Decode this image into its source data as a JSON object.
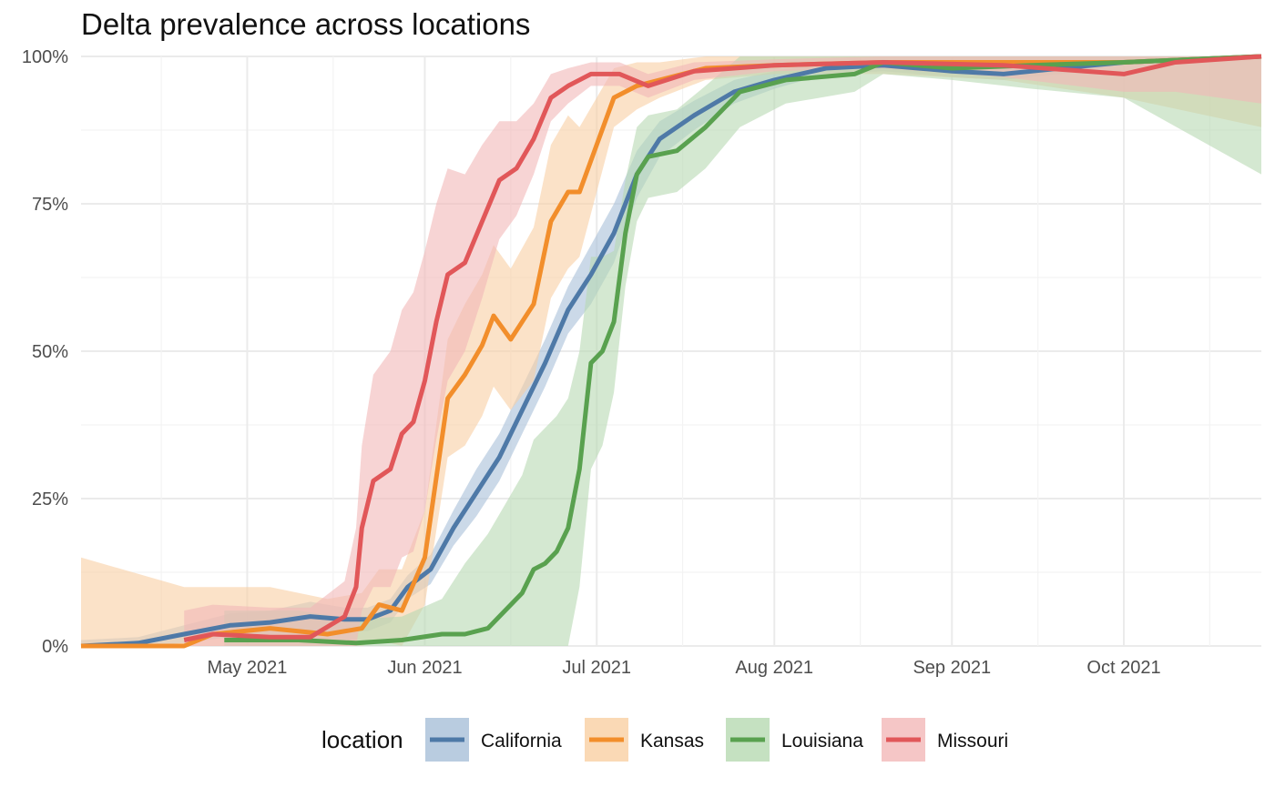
{
  "chart_data": {
    "type": "line",
    "title": "Delta prevalence across locations",
    "xlabel": "",
    "ylabel": "",
    "x_ticks": [
      "May 2021",
      "Jun 2021",
      "Jul 2021",
      "Aug 2021",
      "Sep 2021",
      "Oct 2021"
    ],
    "y_ticks": [
      "0%",
      "25%",
      "50%",
      "75%",
      "100%"
    ],
    "x_range": [
      "2021-04-02",
      "2021-10-25"
    ],
    "ylim": [
      0,
      1
    ],
    "grid": true,
    "legend": {
      "title": "location",
      "position": "bottom"
    },
    "series": [
      {
        "name": "California",
        "color": "#4E79A7",
        "band_color": "#A8BFD8",
        "points": [
          [
            "2021-04-02",
            0.0
          ],
          [
            "2021-04-12",
            0.005
          ],
          [
            "2021-04-20",
            0.02
          ],
          [
            "2021-04-28",
            0.035
          ],
          [
            "2021-05-05",
            0.04
          ],
          [
            "2021-05-12",
            0.05
          ],
          [
            "2021-05-18",
            0.045
          ],
          [
            "2021-05-22",
            0.045
          ],
          [
            "2021-05-26",
            0.06
          ],
          [
            "2021-05-29",
            0.1
          ],
          [
            "2021-06-02",
            0.13
          ],
          [
            "2021-06-06",
            0.2
          ],
          [
            "2021-06-10",
            0.26
          ],
          [
            "2021-06-14",
            0.32
          ],
          [
            "2021-06-18",
            0.4
          ],
          [
            "2021-06-22",
            0.48
          ],
          [
            "2021-06-26",
            0.57
          ],
          [
            "2021-06-30",
            0.63
          ],
          [
            "2021-07-04",
            0.7
          ],
          [
            "2021-07-08",
            0.8
          ],
          [
            "2021-07-12",
            0.86
          ],
          [
            "2021-07-18",
            0.9
          ],
          [
            "2021-07-25",
            0.94
          ],
          [
            "2021-08-01",
            0.96
          ],
          [
            "2021-08-10",
            0.98
          ],
          [
            "2021-08-20",
            0.985
          ],
          [
            "2021-09-01",
            0.975
          ],
          [
            "2021-09-10",
            0.97
          ],
          [
            "2021-09-20",
            0.98
          ],
          [
            "2021-10-01",
            0.99
          ],
          [
            "2021-10-25",
            1.0
          ]
        ],
        "band_half_width": [
          0.01,
          0.01,
          0.015,
          0.02,
          0.02,
          0.025,
          0.02,
          0.02,
          0.02,
          0.02,
          0.025,
          0.03,
          0.04,
          0.04,
          0.04,
          0.04,
          0.04,
          0.05,
          0.05,
          0.04,
          0.03,
          0.025,
          0.02,
          0.015,
          0.01,
          0.01,
          0.01,
          0.01,
          0.01,
          0.005,
          0.0
        ]
      },
      {
        "name": "Kansas",
        "color": "#F28E2B",
        "band_color": "#F9CFA3",
        "points": [
          [
            "2021-04-02",
            0.0
          ],
          [
            "2021-04-20",
            0.0
          ],
          [
            "2021-04-25",
            0.02
          ],
          [
            "2021-05-05",
            0.03
          ],
          [
            "2021-05-15",
            0.02
          ],
          [
            "2021-05-21",
            0.03
          ],
          [
            "2021-05-24",
            0.07
          ],
          [
            "2021-05-28",
            0.06
          ],
          [
            "2021-06-01",
            0.15
          ],
          [
            "2021-06-05",
            0.42
          ],
          [
            "2021-06-08",
            0.46
          ],
          [
            "2021-06-11",
            0.51
          ],
          [
            "2021-06-13",
            0.56
          ],
          [
            "2021-06-16",
            0.52
          ],
          [
            "2021-06-20",
            0.58
          ],
          [
            "2021-06-23",
            0.72
          ],
          [
            "2021-06-26",
            0.77
          ],
          [
            "2021-06-28",
            0.77
          ],
          [
            "2021-07-01",
            0.85
          ],
          [
            "2021-07-04",
            0.93
          ],
          [
            "2021-07-08",
            0.95
          ],
          [
            "2021-07-12",
            0.96
          ],
          [
            "2021-07-20",
            0.98
          ],
          [
            "2021-08-01",
            0.985
          ],
          [
            "2021-08-20",
            0.99
          ],
          [
            "2021-09-10",
            0.99
          ],
          [
            "2021-10-01",
            0.99
          ],
          [
            "2021-10-25",
            1.0
          ]
        ],
        "band_half_width": [
          0.15,
          0.1,
          0.08,
          0.07,
          0.06,
          0.06,
          0.06,
          0.07,
          0.08,
          0.1,
          0.12,
          0.12,
          0.12,
          0.12,
          0.13,
          0.13,
          0.13,
          0.11,
          0.08,
          0.05,
          0.04,
          0.03,
          0.02,
          0.015,
          0.02,
          0.03,
          0.06,
          0.12
        ]
      },
      {
        "name": "Louisiana",
        "color": "#59A14F",
        "band_color": "#B7D9B2",
        "points": [
          [
            "2021-04-27",
            0.01
          ],
          [
            "2021-05-10",
            0.01
          ],
          [
            "2021-05-20",
            0.005
          ],
          [
            "2021-05-28",
            0.01
          ],
          [
            "2021-06-04",
            0.02
          ],
          [
            "2021-06-08",
            0.02
          ],
          [
            "2021-06-12",
            0.03
          ],
          [
            "2021-06-15",
            0.06
          ],
          [
            "2021-06-18",
            0.09
          ],
          [
            "2021-06-20",
            0.13
          ],
          [
            "2021-06-22",
            0.14
          ],
          [
            "2021-06-24",
            0.16
          ],
          [
            "2021-06-26",
            0.2
          ],
          [
            "2021-06-28",
            0.3
          ],
          [
            "2021-06-30",
            0.48
          ],
          [
            "2021-07-02",
            0.5
          ],
          [
            "2021-07-04",
            0.55
          ],
          [
            "2021-07-06",
            0.7
          ],
          [
            "2021-07-08",
            0.8
          ],
          [
            "2021-07-10",
            0.83
          ],
          [
            "2021-07-15",
            0.84
          ],
          [
            "2021-07-20",
            0.88
          ],
          [
            "2021-07-26",
            0.94
          ],
          [
            "2021-08-03",
            0.96
          ],
          [
            "2021-08-15",
            0.97
          ],
          [
            "2021-08-20",
            0.99
          ],
          [
            "2021-09-01",
            0.98
          ],
          [
            "2021-09-15",
            0.985
          ],
          [
            "2021-10-01",
            0.99
          ],
          [
            "2021-10-25",
            1.0
          ]
        ],
        "band_half_width": [
          0.05,
          0.05,
          0.04,
          0.04,
          0.06,
          0.12,
          0.16,
          0.18,
          0.2,
          0.22,
          0.23,
          0.23,
          0.22,
          0.2,
          0.18,
          0.16,
          0.12,
          0.09,
          0.08,
          0.07,
          0.07,
          0.07,
          0.06,
          0.04,
          0.03,
          0.02,
          0.02,
          0.04,
          0.06,
          0.2
        ]
      },
      {
        "name": "Missouri",
        "color": "#E15759",
        "band_color": "#F2B8B8",
        "points": [
          [
            "2021-04-20",
            0.01
          ],
          [
            "2021-04-25",
            0.02
          ],
          [
            "2021-05-05",
            0.015
          ],
          [
            "2021-05-12",
            0.015
          ],
          [
            "2021-05-18",
            0.05
          ],
          [
            "2021-05-20",
            0.1
          ],
          [
            "2021-05-21",
            0.2
          ],
          [
            "2021-05-23",
            0.28
          ],
          [
            "2021-05-26",
            0.3
          ],
          [
            "2021-05-28",
            0.36
          ],
          [
            "2021-05-30",
            0.38
          ],
          [
            "2021-06-01",
            0.45
          ],
          [
            "2021-06-03",
            0.55
          ],
          [
            "2021-06-05",
            0.63
          ],
          [
            "2021-06-08",
            0.65
          ],
          [
            "2021-06-11",
            0.72
          ],
          [
            "2021-06-14",
            0.79
          ],
          [
            "2021-06-17",
            0.81
          ],
          [
            "2021-06-20",
            0.86
          ],
          [
            "2021-06-23",
            0.93
          ],
          [
            "2021-06-26",
            0.95
          ],
          [
            "2021-06-30",
            0.97
          ],
          [
            "2021-07-05",
            0.97
          ],
          [
            "2021-07-10",
            0.95
          ],
          [
            "2021-07-18",
            0.975
          ],
          [
            "2021-08-01",
            0.985
          ],
          [
            "2021-08-20",
            0.99
          ],
          [
            "2021-09-10",
            0.985
          ],
          [
            "2021-10-01",
            0.97
          ],
          [
            "2021-10-10",
            0.99
          ],
          [
            "2021-10-25",
            1.0
          ]
        ],
        "band_half_width": [
          0.05,
          0.05,
          0.05,
          0.05,
          0.06,
          0.1,
          0.14,
          0.18,
          0.2,
          0.21,
          0.22,
          0.22,
          0.2,
          0.18,
          0.15,
          0.13,
          0.1,
          0.08,
          0.06,
          0.04,
          0.03,
          0.02,
          0.02,
          0.02,
          0.015,
          0.01,
          0.01,
          0.02,
          0.03,
          0.05,
          0.08
        ]
      }
    ]
  }
}
